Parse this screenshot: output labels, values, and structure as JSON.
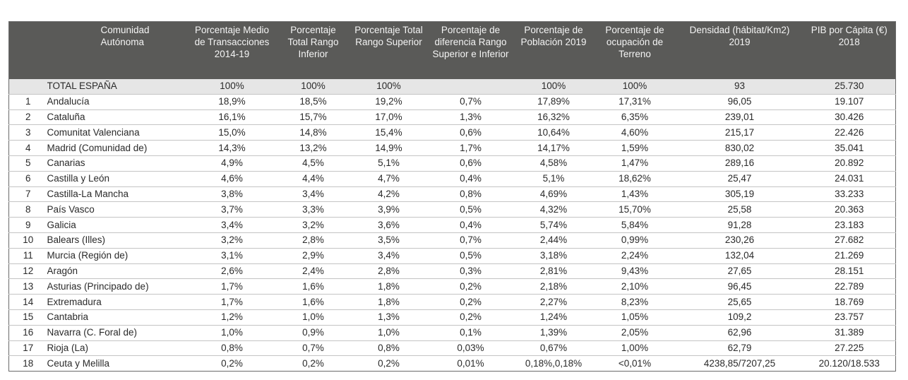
{
  "table": {
    "headers": [
      "",
      "Comunidad Autónoma",
      "Porcentaje Medio de Transacciones 2014-19",
      "Porcentaje Total Rango Inferior",
      "Porcentaje Total Rango Superior",
      "Porcentaje de diferencia Rango Superior e Inferior",
      "Porcentaje de Población 2019",
      "Porcentaje de ocupación de Terreno",
      "Densidad (hábitat/Km2) 2019",
      "PIB por Cápita (€) 2018"
    ],
    "rows": [
      [
        "",
        "TOTAL ESPAÑA",
        "100%",
        "100%",
        "100%",
        "",
        "100%",
        "100%",
        "93",
        "25.730"
      ],
      [
        "1",
        "Andalucía",
        "18,9%",
        "18,5%",
        "19,2%",
        "0,7%",
        "17,89%",
        "17,31%",
        "96,05",
        "19.107"
      ],
      [
        "2",
        "Cataluña",
        "16,1%",
        "15,7%",
        "17,0%",
        "1,3%",
        "16,32%",
        "6,35%",
        "239,01",
        "30.426"
      ],
      [
        "3",
        "Comunitat Valenciana",
        "15,0%",
        "14,8%",
        "15,4%",
        "0,6%",
        "10,64%",
        "4,60%",
        "215,17",
        "22.426"
      ],
      [
        "4",
        "Madrid (Comunidad de)",
        "14,3%",
        "13,2%",
        "14,9%",
        "1,7%",
        "14,17%",
        "1,59%",
        "830,02",
        "35.041"
      ],
      [
        "5",
        "Canarias",
        "4,9%",
        "4,5%",
        "5,1%",
        "0,6%",
        "4,58%",
        "1,47%",
        "289,16",
        "20.892"
      ],
      [
        "6",
        "Castilla y León",
        "4,6%",
        "4,4%",
        "4,7%",
        "0,4%",
        "5,1%",
        "18,62%",
        "25,47",
        "24.031"
      ],
      [
        "7",
        "Castilla-La Mancha",
        "3,8%",
        "3,4%",
        "4,2%",
        "0,8%",
        "4,69%",
        "1,43%",
        "305,19",
        "33.233"
      ],
      [
        "8",
        "País Vasco",
        "3,7%",
        "3,3%",
        "3,9%",
        "0,5%",
        "4,32%",
        "15,70%",
        "25,58",
        "20.363"
      ],
      [
        "9",
        "Galicia",
        "3,4%",
        "3,2%",
        "3,6%",
        "0,4%",
        "5,74%",
        "5,84%",
        "91,28",
        "23.183"
      ],
      [
        "10",
        "Balears (Illes)",
        "3,2%",
        "2,8%",
        "3,5%",
        "0,7%",
        "2,44%",
        "0,99%",
        "230,26",
        "27.682"
      ],
      [
        "11",
        "Murcia (Región de)",
        "3,1%",
        "2,9%",
        "3,4%",
        "0,5%",
        "3,18%",
        "2,24%",
        "132,04",
        "21.269"
      ],
      [
        "12",
        "Aragón",
        "2,6%",
        "2,4%",
        "2,8%",
        "0,3%",
        "2,81%",
        "9,43%",
        "27,65",
        "28.151"
      ],
      [
        "13",
        "Asturias (Principado de)",
        "1,7%",
        "1,6%",
        "1,8%",
        "0,2%",
        "2,18%",
        "2,10%",
        "96,45",
        "22.789"
      ],
      [
        "14",
        "Extremadura",
        "1,7%",
        "1,6%",
        "1,8%",
        "0,2%",
        "2,27%",
        "8,23%",
        "25,65",
        "18.769"
      ],
      [
        "15",
        "Cantabria",
        "1,2%",
        "1,0%",
        "1,3%",
        "0,2%",
        "1,24%",
        "1,05%",
        "109,2",
        "23.757"
      ],
      [
        "16",
        "Navarra (C. Foral de)",
        "1,0%",
        "0,9%",
        "1,0%",
        "0,1%",
        "1,39%",
        "2,05%",
        "62,96",
        "31.389"
      ],
      [
        "17",
        "Rioja (La)",
        "0,8%",
        "0,7%",
        "0,8%",
        "0,03%",
        "0,67%",
        "1,00%",
        "62,79",
        "27.225"
      ],
      [
        "18",
        "Ceuta y Melilla",
        "0,2%",
        "0,2%",
        "0,2%",
        "0,01%",
        "0,18%,0,18%",
        "<0,01%",
        "4238,85/7207,25",
        "20.120/18.533"
      ]
    ]
  }
}
